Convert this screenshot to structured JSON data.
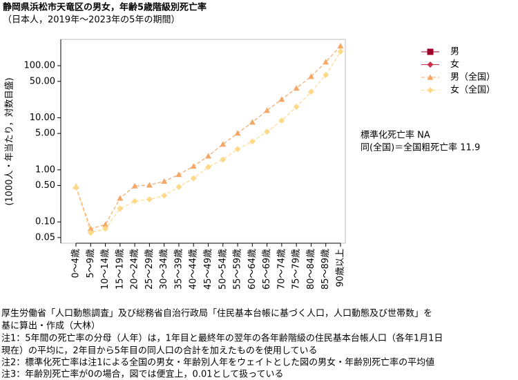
{
  "chart_data": {
    "type": "line",
    "title": "静岡県浜松市天竜区の男女，年齢5歳階級別死亡率",
    "subtitle": "（日本人，2019年〜2023年の5年の期間）",
    "y_label": "(1000人・年当たり，対数目盛)",
    "log_y": true,
    "legend_position": "top right",
    "categories": [
      "0〜4歳",
      "5〜9歳",
      "10〜14歳",
      "15〜19歳",
      "20〜24歳",
      "25〜29歳",
      "30〜34歳",
      "35〜39歳",
      "40〜44歳",
      "45〜49歳",
      "50〜54歳",
      "55〜59歳",
      "60〜64歳",
      "65〜69歳",
      "70〜74歳",
      "75〜79歳",
      "80〜84歳",
      "85〜89歳",
      "90歳以上"
    ],
    "series": [
      {
        "name": "男",
        "color": "#a0002a",
        "marker": "square",
        "values": [
          null,
          null,
          null,
          null,
          null,
          null,
          null,
          null,
          null,
          null,
          null,
          null,
          null,
          null,
          null,
          null,
          null,
          null,
          null
        ]
      },
      {
        "name": "女",
        "color": "#d0304a",
        "marker": "diamond",
        "values": [
          null,
          null,
          null,
          null,
          null,
          null,
          null,
          null,
          null,
          null,
          null,
          null,
          null,
          null,
          null,
          null,
          null,
          null,
          null
        ]
      },
      {
        "name": "男（全国）",
        "color": "#f4a868",
        "marker": "triangle",
        "values": [
          0.48,
          0.074,
          0.089,
          0.285,
          0.49,
          0.51,
          0.6,
          0.81,
          1.17,
          1.84,
          3.1,
          5.05,
          8.2,
          13.8,
          22.6,
          37,
          62,
          118,
          238
        ]
      },
      {
        "name": "女（全国）",
        "color": "#ffd98a",
        "marker": "diamond",
        "values": [
          0.46,
          0.062,
          0.074,
          0.18,
          0.25,
          0.27,
          0.32,
          0.47,
          0.69,
          1.13,
          1.58,
          2.5,
          3.5,
          5.4,
          8.8,
          16.2,
          31.6,
          66,
          187
        ]
      }
    ],
    "ylim": [
      0.039,
      320
    ],
    "yticks": [
      {
        "value": 0.05,
        "label": "0.05"
      },
      {
        "value": 0.1,
        "label": "0.10"
      },
      {
        "value": 0.5,
        "label": "0.50"
      },
      {
        "value": 1,
        "label": "1.00"
      },
      {
        "value": 5,
        "label": "5.00"
      },
      {
        "value": 10,
        "label": "10.00"
      },
      {
        "value": 50,
        "label": "50.00"
      },
      {
        "value": 100,
        "label": "100.00"
      }
    ],
    "annotations": [
      "標準化死亡率 NA",
      "同(全国)＝全国粗死亡率 11.9"
    ],
    "notes": [
      "厚生労働省「人口動態調査」及び総務省自治行政局「住民基本台帳に基づく人口，人口動態及び世帯数」を",
      "基に算出・作成（大林）",
      "注1：5年間の死亡率の分母（人年）は，1年目と最終年の翌年の各年齢階級の住民基本台帳人口（各年1月1日",
      "現在）の平均に，2年目から5年目の同人口の合計を加えたものを使用している",
      "注2：標準化死亡率は注1による全国の男女・年齢別人年をウェイトとした図の男女・年齢別死亡率の平均値",
      "注3：年齢別死亡率が0の場合，図では便宜上，0.01として扱っている"
    ]
  }
}
